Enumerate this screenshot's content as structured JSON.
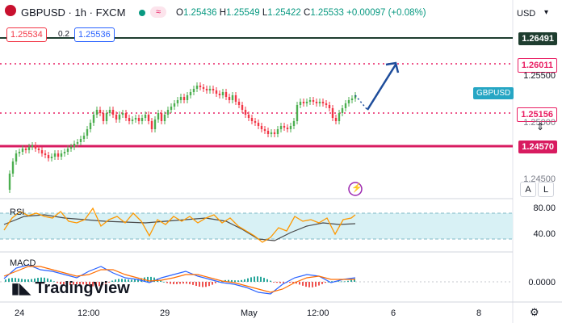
{
  "header": {
    "symbol": "GBPUSD",
    "separator1": "·",
    "interval": "1h",
    "separator2": "·",
    "source": "FXCM",
    "open_label": "O",
    "open": "1.25436",
    "high_label": "H",
    "high": "1.25549",
    "low_label": "L",
    "low": "1.25422",
    "close_label": "C",
    "close": "1.25533",
    "change": "+0.00097 (+0.08%)",
    "sell_price": "1.25534",
    "spread": "0.2",
    "buy_price": "1.25536"
  },
  "currency": "USD",
  "price_axis": {
    "tick_1": "1.25500",
    "tick_2": "1.25000",
    "tick_3": "1.24500"
  },
  "levels": {
    "resistance_top": "1.26491",
    "target": "1.26011",
    "current_symbol": "GBPUSD",
    "mid": "1.25156",
    "support": "1.24570"
  },
  "rsi": {
    "label": "RSI",
    "upper": "80.00",
    "lower": "40.00"
  },
  "macd": {
    "label": "MACD",
    "zero": "0.0000"
  },
  "time_axis": [
    "24",
    "12:00",
    "29",
    "May",
    "12:00",
    "6",
    "8"
  ],
  "branding": "TradingView",
  "scale_buttons": {
    "auto": "A",
    "log": "L"
  },
  "colors": {
    "up": "#089981",
    "down": "#f23645",
    "candle": "#4caf50",
    "resistance": "#1e3d2f",
    "support_line": "#d81b60",
    "dotted": "#e91e63",
    "rsi_band": "#d8f1f5",
    "rsi_line": "#ff9800",
    "arrow": "#1e4d9b"
  }
}
